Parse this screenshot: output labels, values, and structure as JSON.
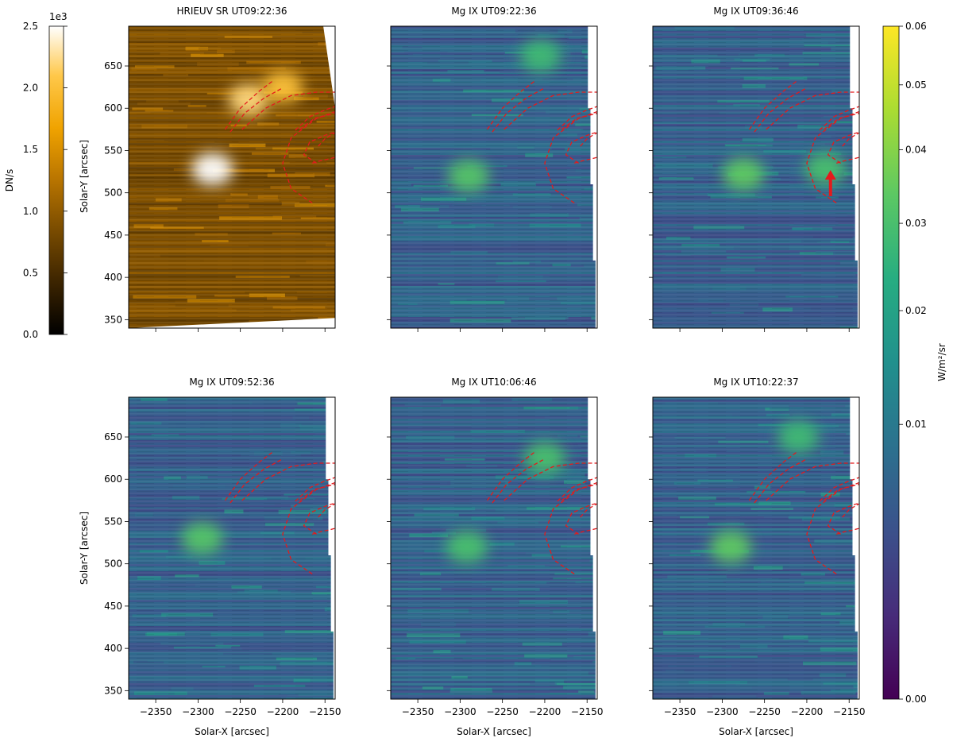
{
  "figure": {
    "x_axis_label": "Solar-X [arcsec]",
    "y_axis_label": "Solar-Y [arcsec]"
  },
  "chart_data": {
    "type": "heatmap",
    "colors": {
      "hri_colormap": [
        "#000000",
        "#3c2400",
        "#7a4c00",
        "#b87400",
        "#f0a300",
        "#ffc84a",
        "#ffffff"
      ],
      "viridis": [
        "#440154",
        "#472c7a",
        "#3b518b",
        "#2c718e",
        "#21908d",
        "#27ad81",
        "#5cc863",
        "#aadc32",
        "#fde725"
      ],
      "loop_lines": "#e41a1c"
    },
    "xlim": [
      -2382,
      -2138
    ],
    "ylim": [
      340,
      697
    ],
    "x_ticks": [
      -2350,
      -2300,
      -2250,
      -2200,
      -2150
    ],
    "y_ticks": [
      350,
      400,
      450,
      500,
      550,
      600,
      650
    ],
    "panels": [
      {
        "title": "HRIEUV SR UT09:22:36",
        "colormap": "hri"
      },
      {
        "title": "Mg IX UT09:22:36",
        "colormap": "viridis"
      },
      {
        "title": "Mg IX UT09:36:46",
        "colormap": "viridis"
      },
      {
        "title": "Mg IX UT09:52:36",
        "colormap": "viridis"
      },
      {
        "title": "Mg IX UT10:06:46",
        "colormap": "viridis"
      },
      {
        "title": "Mg IX UT10:22:37",
        "colormap": "viridis"
      }
    ],
    "colorbar_hri": {
      "label": "DN/s",
      "exponent_label": "1e3",
      "range": [
        0.0,
        2.5
      ],
      "tick_labels": [
        "0.0",
        "0.5",
        "1.0",
        "1.5",
        "2.0",
        "2.5"
      ]
    },
    "colorbar_mg": {
      "label": "W/m²/sr",
      "scale": "sqrt",
      "range": [
        0.0,
        0.06
      ],
      "tick_values": [
        0.0,
        0.01,
        0.02,
        0.03,
        0.04,
        0.05,
        0.06
      ],
      "tick_labels": [
        "0.00",
        "0.01",
        "0.02",
        "0.03",
        "0.04",
        "0.05",
        "0.06"
      ]
    },
    "loops": [
      [
        [
          -2268,
          575
        ],
        [
          -2250,
          600
        ],
        [
          -2228,
          620
        ],
        [
          -2212,
          632
        ]
      ],
      [
        [
          -2262,
          572
        ],
        [
          -2245,
          594
        ],
        [
          -2222,
          612
        ],
        [
          -2200,
          624
        ]
      ],
      [
        [
          -2248,
          575
        ],
        [
          -2220,
          600
        ],
        [
          -2190,
          615
        ],
        [
          -2160,
          619
        ],
        [
          -2138,
          619
        ]
      ],
      [
        [
          -2185,
          574
        ],
        [
          -2168,
          590
        ],
        [
          -2150,
          598
        ],
        [
          -2138,
          602
        ]
      ],
      [
        [
          -2180,
          575
        ],
        [
          -2162,
          588
        ],
        [
          -2146,
          592
        ],
        [
          -2138,
          594
        ]
      ],
      [
        [
          -2165,
          488
        ],
        [
          -2190,
          505
        ],
        [
          -2200,
          535
        ],
        [
          -2190,
          565
        ],
        [
          -2160,
          588
        ],
        [
          -2138,
          596
        ]
      ],
      [
        [
          -2160,
          535
        ],
        [
          -2175,
          545
        ],
        [
          -2168,
          560
        ],
        [
          -2150,
          568
        ],
        [
          -2138,
          572
        ]
      ],
      [
        [
          -2165,
          535
        ],
        [
          -2155,
          538
        ],
        [
          -2145,
          540
        ],
        [
          -2138,
          542
        ]
      ],
      [
        [
          -2158,
          555
        ],
        [
          -2150,
          564
        ],
        [
          -2140,
          570
        ],
        [
          -2138,
          571
        ]
      ]
    ],
    "arrow": {
      "panel": 2,
      "x": -2172,
      "y_tail": 496,
      "y_head": 524
    },
    "bright_spots": [
      {
        "panel": 0,
        "x": -2283,
        "y": 528,
        "level": 2.5
      },
      {
        "panel": 0,
        "x": -2240,
        "y": 610,
        "level": 2.2
      },
      {
        "panel": 0,
        "x": -2200,
        "y": 625,
        "level": 2.0
      },
      {
        "panel": 1,
        "x": -2290,
        "y": 520,
        "level": 0.032
      },
      {
        "panel": 1,
        "x": -2205,
        "y": 662,
        "level": 0.028
      },
      {
        "panel": 2,
        "x": -2275,
        "y": 522,
        "level": 0.034
      },
      {
        "panel": 2,
        "x": -2178,
        "y": 528,
        "level": 0.03
      },
      {
        "panel": 3,
        "x": -2295,
        "y": 530,
        "level": 0.032
      },
      {
        "panel": 4,
        "x": -2292,
        "y": 520,
        "level": 0.03
      },
      {
        "panel": 4,
        "x": -2200,
        "y": 625,
        "level": 0.03
      },
      {
        "panel": 5,
        "x": -2290,
        "y": 520,
        "level": 0.034
      },
      {
        "panel": 5,
        "x": -2210,
        "y": 650,
        "level": 0.028
      }
    ]
  }
}
